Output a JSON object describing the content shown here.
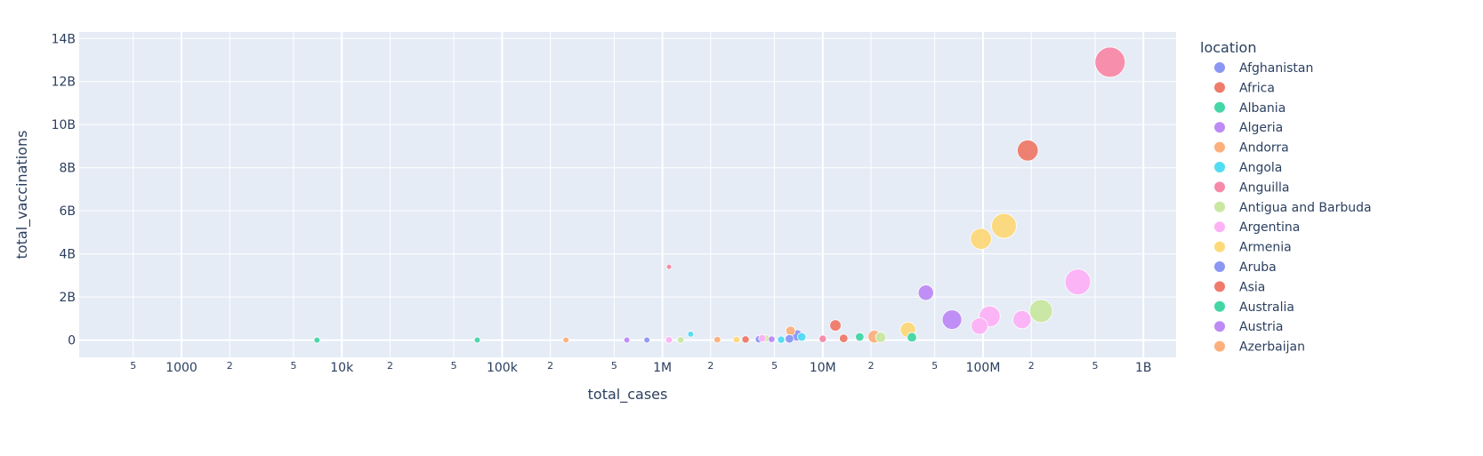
{
  "chart_data": {
    "type": "scatter",
    "x_scale": "log",
    "title": "",
    "xlabel": "total_cases",
    "ylabel": "total_vaccinations",
    "xlim": [
      230,
      1600000000
    ],
    "ylim": [
      -800000000,
      14300000000
    ],
    "grid": true,
    "legend": {
      "title": "location",
      "position": "right",
      "entries": [
        {
          "name": "Afghanistan",
          "color": "#8c97f4"
        },
        {
          "name": "Africa",
          "color": "#ef7b6b"
        },
        {
          "name": "Albania",
          "color": "#44d6a6"
        },
        {
          "name": "Algeria",
          "color": "#bd8bf5"
        },
        {
          "name": "Andorra",
          "color": "#fcb07e"
        },
        {
          "name": "Angola",
          "color": "#52dcf2"
        },
        {
          "name": "Anguilla",
          "color": "#f78aa9"
        },
        {
          "name": "Antigua and Barbuda",
          "color": "#cae7a2"
        },
        {
          "name": "Argentina",
          "color": "#fdb2f6"
        },
        {
          "name": "Armenia",
          "color": "#fdd97a"
        },
        {
          "name": "Aruba",
          "color": "#8c97f4"
        },
        {
          "name": "Asia",
          "color": "#ef7b6b"
        },
        {
          "name": "Australia",
          "color": "#44d6a6"
        },
        {
          "name": "Austria",
          "color": "#bd8bf5"
        },
        {
          "name": "Azerbaijan",
          "color": "#fcb07e"
        }
      ]
    },
    "x_ticks": [
      {
        "value": 500,
        "label": "5",
        "minor": true
      },
      {
        "value": 1000,
        "label": "1000",
        "minor": false
      },
      {
        "value": 2000,
        "label": "2",
        "minor": true
      },
      {
        "value": 5000,
        "label": "5",
        "minor": true
      },
      {
        "value": 10000,
        "label": "10k",
        "minor": false
      },
      {
        "value": 20000,
        "label": "2",
        "minor": true
      },
      {
        "value": 50000,
        "label": "5",
        "minor": true
      },
      {
        "value": 100000,
        "label": "100k",
        "minor": false
      },
      {
        "value": 200000,
        "label": "2",
        "minor": true
      },
      {
        "value": 500000,
        "label": "5",
        "minor": true
      },
      {
        "value": 1000000,
        "label": "1M",
        "minor": false
      },
      {
        "value": 2000000,
        "label": "2",
        "minor": true
      },
      {
        "value": 5000000,
        "label": "5",
        "minor": true
      },
      {
        "value": 10000000,
        "label": "10M",
        "minor": false
      },
      {
        "value": 20000000,
        "label": "2",
        "minor": true
      },
      {
        "value": 50000000,
        "label": "5",
        "minor": true
      },
      {
        "value": 100000000,
        "label": "100M",
        "minor": false
      },
      {
        "value": 200000000,
        "label": "2",
        "minor": true
      },
      {
        "value": 500000000,
        "label": "5",
        "minor": true
      },
      {
        "value": 1000000000,
        "label": "1B",
        "minor": false
      }
    ],
    "y_ticks": [
      {
        "value": 0,
        "label": "0"
      },
      {
        "value": 2000000000,
        "label": "2B"
      },
      {
        "value": 4000000000,
        "label": "4B"
      },
      {
        "value": 6000000000,
        "label": "6B"
      },
      {
        "value": 8000000000,
        "label": "8B"
      },
      {
        "value": 10000000000,
        "label": "10B"
      },
      {
        "value": 12000000000,
        "label": "12B"
      },
      {
        "value": 14000000000,
        "label": "14B"
      }
    ],
    "points": [
      {
        "location": "Anguilla",
        "x": 620000000,
        "y": 12900000000,
        "size": 100,
        "color": "#f78aa9"
      },
      {
        "location": "Asia",
        "x": 190000000,
        "y": 8800000000,
        "size": 48,
        "color": "#ef7b6b"
      },
      {
        "location": "Armenia",
        "x": 135000000,
        "y": 5300000000,
        "size": 68,
        "color": "#fdd97a"
      },
      {
        "location": "Armenia",
        "x": 97000000,
        "y": 4700000000,
        "size": 48,
        "color": "#fdd97a"
      },
      {
        "location": "Argentina",
        "x": 390000000,
        "y": 2700000000,
        "size": 72,
        "color": "#fdb2f6"
      },
      {
        "location": "Algeria",
        "x": 44000000,
        "y": 2200000000,
        "size": 26,
        "color": "#bd8bf5"
      },
      {
        "location": "Antigua and Barbuda",
        "x": 230000000,
        "y": 1350000000,
        "size": 58,
        "color": "#cae7a2"
      },
      {
        "location": "Argentina",
        "x": 110000000,
        "y": 1100000000,
        "size": 48,
        "color": "#fdb2f6"
      },
      {
        "location": "Austria",
        "x": 64000000,
        "y": 950000000,
        "size": 42,
        "color": "#bd8bf5"
      },
      {
        "location": "Argentina",
        "x": 175000000,
        "y": 950000000,
        "size": 36,
        "color": "#fdb2f6"
      },
      {
        "location": "Argentina",
        "x": 95000000,
        "y": 650000000,
        "size": 30,
        "color": "#fdb2f6"
      },
      {
        "location": "Asia",
        "x": 12000000,
        "y": 680000000,
        "size": 14,
        "color": "#ef7b6b"
      },
      {
        "location": "Armenia",
        "x": 34000000,
        "y": 480000000,
        "size": 26,
        "color": "#fdd97a"
      },
      {
        "location": "Andorra",
        "x": 6300000,
        "y": 430000000,
        "size": 10,
        "color": "#fcb07e"
      },
      {
        "location": "Aruba",
        "x": 6900000,
        "y": 220000000,
        "size": 14,
        "color": "#8c97f4"
      },
      {
        "location": "Andorra",
        "x": 21000000,
        "y": 160000000,
        "size": 18,
        "color": "#fcb07e"
      },
      {
        "location": "Antigua and Barbuda",
        "x": 23000000,
        "y": 130000000,
        "size": 12,
        "color": "#cae7a2"
      },
      {
        "location": "Australia",
        "x": 17000000,
        "y": 150000000,
        "size": 8,
        "color": "#44d6a6"
      },
      {
        "location": "Australia",
        "x": 36000000,
        "y": 130000000,
        "size": 10,
        "color": "#44d6a6"
      },
      {
        "location": "Angola",
        "x": 7400000,
        "y": 150000000,
        "size": 8,
        "color": "#52dcf2"
      },
      {
        "location": "Asia",
        "x": 13500000,
        "y": 80000000,
        "size": 8,
        "color": "#ef7b6b"
      },
      {
        "location": "Anguilla",
        "x": 10000000,
        "y": 60000000,
        "size": 6,
        "color": "#f78aa9"
      },
      {
        "location": "Afghanistan",
        "x": 6200000,
        "y": 60000000,
        "size": 8,
        "color": "#8c97f4"
      },
      {
        "location": "Angola",
        "x": 5500000,
        "y": 20000000,
        "size": 6,
        "color": "#52dcf2"
      },
      {
        "location": "Africa",
        "x": 3300000,
        "y": 30000000,
        "size": 6,
        "color": "#ef7b6b"
      },
      {
        "location": "Afghanistan",
        "x": 4000000,
        "y": 40000000,
        "size": 6,
        "color": "#8c97f4"
      },
      {
        "location": "Antigua and Barbuda",
        "x": 4400000,
        "y": 80000000,
        "size": 6,
        "color": "#cae7a2"
      },
      {
        "location": "Argentina",
        "x": 4200000,
        "y": 90000000,
        "size": 6,
        "color": "#fdb2f6"
      },
      {
        "location": "Algeria",
        "x": 4800000,
        "y": 40000000,
        "size": 5,
        "color": "#bd8bf5"
      },
      {
        "location": "Armenia",
        "x": 2900000,
        "y": 20000000,
        "size": 5,
        "color": "#fdd97a"
      },
      {
        "location": "Andorra",
        "x": 2200000,
        "y": 20000000,
        "size": 5,
        "color": "#fcb07e"
      },
      {
        "location": "Angola",
        "x": 1500000,
        "y": 280000000,
        "size": 4,
        "color": "#52dcf2"
      },
      {
        "location": "Anguilla",
        "x": 1100000,
        "y": 3400000000,
        "size": 3,
        "color": "#f78aa9"
      },
      {
        "location": "Antigua and Barbuda",
        "x": 1300000,
        "y": 10000000,
        "size": 5,
        "color": "#cae7a2"
      },
      {
        "location": "Argentina",
        "x": 1100000,
        "y": 10000000,
        "size": 5,
        "color": "#fdb2f6"
      },
      {
        "location": "Aruba",
        "x": 800000,
        "y": 5000000,
        "size": 4,
        "color": "#8c97f4"
      },
      {
        "location": "Austria",
        "x": 600000,
        "y": 5000000,
        "size": 4,
        "color": "#bd8bf5"
      },
      {
        "location": "Azerbaijan",
        "x": 250000,
        "y": 3000000,
        "size": 4,
        "color": "#fcb07e"
      },
      {
        "location": "Australia",
        "x": 70000,
        "y": 2000000,
        "size": 4,
        "color": "#44d6a6"
      },
      {
        "location": "Albania",
        "x": 7000,
        "y": 1000000,
        "size": 4,
        "color": "#44d6a6"
      }
    ]
  }
}
